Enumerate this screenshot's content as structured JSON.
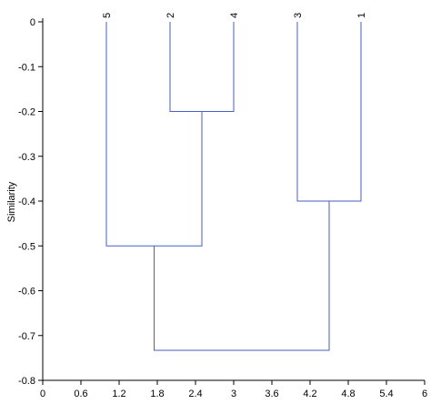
{
  "chart_data": {
    "type": "dendrogram",
    "ylabel": "Similarity",
    "xlim": [
      0,
      6
    ],
    "ylim": [
      -0.8,
      0
    ],
    "x_ticks": [
      0,
      0.6,
      1.2,
      1.8,
      2.4,
      3,
      3.6,
      4.2,
      4.8,
      5.4,
      6
    ],
    "x_tick_labels": [
      "0",
      "0.6",
      "1.2",
      "1.8",
      "2.4",
      "3",
      "3.6",
      "4.2",
      "4.8",
      "5.4",
      "6"
    ],
    "y_ticks": [
      0,
      -0.1,
      -0.2,
      -0.3,
      -0.4,
      -0.5,
      -0.6,
      -0.7,
      -0.8
    ],
    "y_tick_labels": [
      "0",
      "-0.1",
      "-0.2",
      "-0.3",
      "-0.4",
      "-0.5",
      "-0.6",
      "-0.7",
      "-0.8"
    ],
    "leaves": [
      {
        "label": "5",
        "x": 1
      },
      {
        "label": "2",
        "x": 2
      },
      {
        "label": "4",
        "x": 3
      },
      {
        "label": "3",
        "x": 4
      },
      {
        "label": "1",
        "x": 5
      }
    ],
    "merges": [
      {
        "left_x": 2,
        "left_y": 0,
        "right_x": 3,
        "right_y": 0,
        "height": -0.2
      },
      {
        "left_x": 4,
        "left_y": 0,
        "right_x": 5,
        "right_y": 0,
        "height": -0.4
      },
      {
        "left_x": 1,
        "left_y": 0,
        "right_x": 2.5,
        "right_y": -0.2,
        "height": -0.5
      },
      {
        "left_x": 1.75,
        "left_y": -0.5,
        "right_x": 4.5,
        "right_y": -0.4,
        "height": -0.733
      }
    ],
    "line_color": "#4a5fc1",
    "axis_color": "#000000",
    "grid": false
  }
}
